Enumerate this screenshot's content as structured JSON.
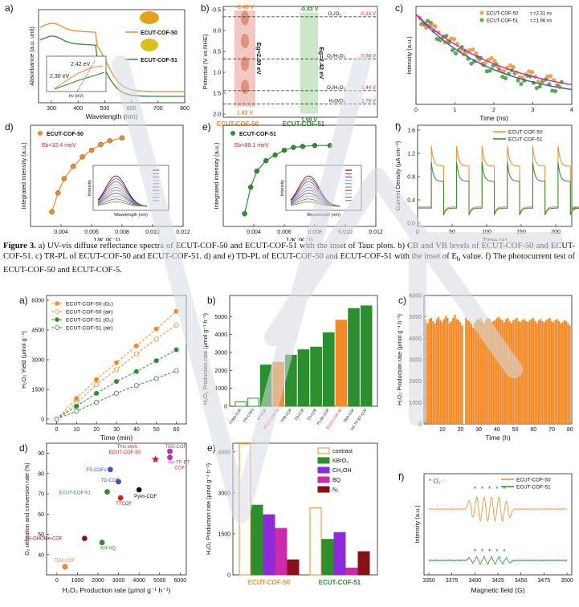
{
  "colors": {
    "orange": "#f28a28",
    "green": "#2b8f2e",
    "magenta": "#cc2aa8",
    "blue": "#3a55c8",
    "dark_red": "#8b0f18",
    "purple": "#8e2bd6",
    "red": "#e21b1b",
    "light_orange": "#f7a24a"
  },
  "caption": {
    "lead": "Figure 3.",
    "text": " a) UV-vis diffuse reflectance spectra of ECUT-COF-50 and ECUT-COF-51 with the inset of Tauc plots. b) CB and VB levels of ECUT-COF-50 and ECUT-COF-51. c) TR-PL of ECUT-COF-50 and ECUT-COF-51. d) and e) TD-PL of ECUT-COF-50 and ECUT-COF-51 with the inset of E",
    "sub": "b",
    "tail": " value. f)   The photocurrent test of ECUT-COF-50 and ECUT-COF-5."
  },
  "panel_letters": {
    "a": "a)",
    "b": "b)",
    "c": "c)",
    "d": "d)",
    "e": "e)",
    "f": "f)"
  },
  "chart_data": [
    {
      "id": "f3a",
      "type": "line",
      "xlabel": "Wavelength (nm)",
      "ylabel": "Absorbance (a.u. unit)",
      "xlim": [
        250,
        800
      ],
      "x_ticks": [
        "300",
        "400",
        "500",
        "600",
        "700",
        "800"
      ],
      "series": [
        {
          "name": "ECUT-COF-50",
          "color": "orange"
        },
        {
          "name": "ECUT-COF-51",
          "color": "green"
        }
      ],
      "inset": {
        "xlabel": "hν (eV)",
        "annotations": [
          "2.42 eV",
          "2.30 eV"
        ]
      }
    },
    {
      "id": "f3b",
      "type": "diagram",
      "ylabel": "Potential (V vs.NHE)",
      "ylim": [
        -0.5,
        2.0
      ],
      "y_ticks": [
        "-0.5",
        "0.0",
        "0.5",
        "1.0",
        "1.5",
        "2.0"
      ],
      "compounds": [
        {
          "name": "ECUT-COF-50",
          "cb": -0.48,
          "vb": 1.82,
          "cb_label": "-0.48 V",
          "vb_label": "1.82 V",
          "gap_label": "Eg=2.30 eV"
        },
        {
          "name": "ECUT-COF-51",
          "cb": -0.43,
          "vb": 1.99,
          "cb_label": "-0.43 V",
          "vb_label": "1.99 V",
          "gap_label": "Eg=2.42 eV"
        }
      ],
      "redox": [
        {
          "label": "O₂/O₂·⁻",
          "value_label": "-0.33 V",
          "v": -0.33
        },
        {
          "label": "O₂/H₂O₂",
          "value_label": "0.68 V",
          "v": 0.68
        },
        {
          "label": "O₂/H₂O₂",
          "value_label": "1.44 V",
          "v": 1.44
        },
        {
          "label": "H₂O/O₂",
          "value_label": "1.76 V",
          "v": 1.76
        }
      ]
    },
    {
      "id": "f3c",
      "type": "scatter",
      "xlabel": "Time (ns)",
      "ylabel": "Intensity (a.u.)",
      "xlim": [
        0,
        4
      ],
      "x_ticks": [
        "0",
        "1",
        "2",
        "3",
        "4"
      ],
      "series": [
        {
          "name": "ECUT-COF-50",
          "tau": "τ =2.31 ns",
          "color": "light_orange",
          "fit": "magenta"
        },
        {
          "name": "ECUT-COF-51",
          "tau": "τ =1.96 ns",
          "color": "green",
          "fit": "blue"
        }
      ]
    },
    {
      "id": "f3d",
      "type": "scatter",
      "xlabel": "1/K (K⁻¹)",
      "ylabel": "Integrated Intensity (a.u.)",
      "xlim": [
        0.002,
        0.012
      ],
      "x_ticks": [
        "0.004",
        "0.006",
        "0.008",
        "0.010",
        "0.012"
      ],
      "legend": "ECUT-COF-50",
      "annotation": "Eb=32.4 meV",
      "color": "orange",
      "x": [
        0.0034,
        0.0038,
        0.0042,
        0.0048,
        0.0054,
        0.006,
        0.0066,
        0.0072,
        0.008
      ],
      "y": [
        0.12,
        0.32,
        0.47,
        0.6,
        0.7,
        0.77,
        0.83,
        0.87,
        0.9
      ],
      "inset": {
        "xlabel": "Wavelength (nm)",
        "ylabel": "Intensity"
      }
    },
    {
      "id": "f3e",
      "type": "scatter",
      "xlabel": "1/K (K⁻¹)",
      "ylabel": "Integrated intensity (a.u.)",
      "xlim": [
        0.002,
        0.012
      ],
      "x_ticks": [
        "0.004",
        "0.006",
        "0.008",
        "0.010",
        "0.012"
      ],
      "legend": "ECUT-COF-51",
      "annotation": "Eb=89.1 meV",
      "color": "green",
      "x": [
        0.0034,
        0.0038,
        0.0042,
        0.0048,
        0.0054,
        0.006,
        0.0066,
        0.0072,
        0.008,
        0.009
      ],
      "y": [
        0.1,
        0.38,
        0.55,
        0.66,
        0.72,
        0.77,
        0.8,
        0.81,
        0.82,
        0.82
      ],
      "inset": {
        "xlabel": "Wavelength (nm)",
        "ylabel": "Intensity"
      }
    },
    {
      "id": "f3f",
      "type": "line",
      "xlabel": "Time (s)",
      "ylabel": "Current Density (µA cm⁻²)",
      "xlim": [
        0,
        225
      ],
      "ylim": [
        0,
        1.6
      ],
      "x_ticks": [
        "0",
        "50",
        "100",
        "150",
        "200"
      ],
      "y_ticks": [
        "0.0",
        "0.4",
        "0.8",
        "1.2",
        "1.6"
      ],
      "series": [
        {
          "name": "ECUT-COF-50",
          "color": "orange"
        },
        {
          "name": "ECUT-COF-51",
          "color": "green"
        }
      ]
    },
    {
      "id": "f4a",
      "type": "line",
      "xlabel": "Time (min)",
      "ylabel": "H₂O₂ Yield (µmol g⁻¹)",
      "xlim": [
        0,
        60
      ],
      "ylim": [
        0,
        6000
      ],
      "x_ticks": [
        "0",
        "10",
        "20",
        "30",
        "40",
        "50",
        "60"
      ],
      "y_ticks": [
        "0",
        "1500",
        "3000",
        "4500",
        "6000"
      ],
      "x": [
        0,
        10,
        20,
        30,
        40,
        50,
        60
      ],
      "series": [
        {
          "name": "ECUT-COF-50 (O₂)",
          "color": "orange",
          "filled": true,
          "values": [
            0,
            1050,
            2000,
            2850,
            3700,
            4550,
            5450
          ]
        },
        {
          "name": "ECUT-COF-50 (air)",
          "color": "orange",
          "filled": false,
          "values": [
            0,
            800,
            1750,
            2500,
            3300,
            4050,
            4750
          ]
        },
        {
          "name": "ECUT-COF-51 (O₂)",
          "color": "green",
          "filled": true,
          "values": [
            0,
            650,
            1300,
            1900,
            2400,
            2950,
            3500
          ]
        },
        {
          "name": "ECUT-COF-51 (air)",
          "color": "green",
          "filled": false,
          "values": [
            0,
            400,
            850,
            1300,
            1700,
            2050,
            2450
          ]
        }
      ]
    },
    {
      "id": "f4b",
      "type": "bar",
      "ylabel": "H₂O₂ Production rate (µmol g⁻¹ h⁻¹)",
      "ylim": [
        0,
        6000
      ],
      "y_ticks": [
        "0",
        "1000",
        "2000",
        "3000",
        "4000",
        "5000"
      ],
      "categories": [
        "TTBD-COF",
        "FS-COFs",
        "KT-COF",
        "ECUT-COF-51",
        "TPB-COF",
        "TD-COF",
        "TO-COF",
        "Py-Bz-COF",
        "ECUT-COF-50",
        "TBD-COF",
        "HZ-TP-BT-COF"
      ],
      "values": [
        250,
        450,
        2300,
        2450,
        2850,
        3150,
        3300,
        4100,
        4800,
        5450,
        5600
      ],
      "styles": [
        "hollow_green",
        "hollow_green",
        "green",
        "orange",
        "green",
        "green",
        "green",
        "green",
        "orange",
        "green",
        "green"
      ]
    },
    {
      "id": "f4c",
      "type": "bar",
      "xlabel": "Time (h)",
      "ylabel": "H₂O₂ Production rate (µmol g⁻¹ h⁻¹)",
      "xlim": [
        0,
        81
      ],
      "ylim": [
        0,
        6000
      ],
      "x_ticks": [
        "10",
        "20",
        "30",
        "40",
        "50",
        "60",
        "70",
        "80"
      ],
      "y_ticks": [
        "0",
        "1000",
        "2000",
        "3000",
        "4000",
        "5000",
        "6000"
      ],
      "x": [
        1,
        2,
        3,
        4,
        5,
        6,
        7,
        8,
        9,
        10,
        11,
        12,
        13,
        14,
        15,
        16,
        17,
        18,
        19,
        20,
        21,
        22,
        23,
        24,
        25,
        26,
        27,
        28,
        29,
        30,
        31,
        32,
        33,
        34,
        35,
        36,
        37,
        38,
        39,
        40,
        41,
        42,
        43,
        44,
        45,
        46,
        47,
        48,
        49,
        50,
        51,
        52,
        53,
        54,
        55,
        56,
        57,
        58,
        59,
        60,
        61,
        62,
        63,
        64,
        65,
        66,
        67,
        68,
        69,
        70,
        71,
        72,
        73,
        74,
        75,
        76,
        77,
        78,
        79,
        80
      ],
      "values": [
        4850,
        4700,
        4900,
        4950,
        4800,
        4700,
        4900,
        5000,
        4850,
        4750,
        4900,
        5050,
        4950,
        4700,
        4800,
        4950,
        5100,
        4900,
        4850,
        4750,
        4600,
        4900,
        4950,
        4850,
        4800,
        4700,
        4500,
        4750,
        4900,
        4850,
        4950,
        4800,
        4700,
        4850,
        4950,
        4900,
        4750,
        4800,
        4850,
        4950,
        5000,
        4900,
        4850,
        4750,
        4900,
        4950,
        4800,
        4700,
        4850,
        4900,
        4950,
        4800,
        4750,
        4850,
        4900,
        4800,
        4750,
        4850,
        4900,
        4950,
        4800,
        4700,
        4850,
        4900,
        4800,
        4750,
        4850,
        4900,
        4950,
        4800,
        4750,
        4850,
        4900,
        4800,
        4700,
        4750,
        4850,
        4800,
        4700,
        4600
      ],
      "color": "orange"
    },
    {
      "id": "f4d",
      "type": "scatter",
      "xlabel": "H₂O₂ Production rate (µmol g⁻¹ h⁻¹)",
      "ylabel": "O₂ utilization and conversion rate (%)",
      "xlim": [
        -500,
        6300
      ],
      "ylim": [
        30,
        95
      ],
      "x_ticks": [
        "0",
        "1000",
        "2000",
        "3000",
        "4000",
        "5000",
        "6000"
      ],
      "y_ticks": [
        "40",
        "50",
        "60",
        "70",
        "80",
        "90"
      ],
      "points": [
        {
          "name": "This work ECUT-COF-50",
          "x": 4800,
          "y": 87,
          "color": "red",
          "marker": "star"
        },
        {
          "name": "TBD-COF",
          "x": 5500,
          "y": 91,
          "color": "magenta",
          "marker": "circle"
        },
        {
          "name": "Hz-TP-BT COF",
          "x": 5500,
          "y": 88,
          "color": "magenta",
          "marker": "circle"
        },
        {
          "name": "FS-COFs",
          "x": 2600,
          "y": 82,
          "color": "blue",
          "marker": "circle"
        },
        {
          "name": "TD-COF",
          "x": 3000,
          "y": 76,
          "color": "blue",
          "marker": "circle"
        },
        {
          "name": "ECUT-COF-51",
          "x": 2450,
          "y": 71,
          "color": "green",
          "marker": "circle"
        },
        {
          "name": "TTCOF",
          "x": 3100,
          "y": 68,
          "color": "red",
          "marker": "circle"
        },
        {
          "name": "Pyim-COF",
          "x": 4000,
          "y": 72,
          "color": "black",
          "marker": "circle"
        },
        {
          "name": "FS-OHOMe-COF",
          "x": 1350,
          "y": 48,
          "color": "dark_red",
          "marker": "circle"
        },
        {
          "name": "KH-AQ",
          "x": 2200,
          "y": 46,
          "color": "green",
          "marker": "circle"
        },
        {
          "name": "TDB-COF",
          "x": 400,
          "y": 34,
          "color": "orange",
          "marker": "circle"
        }
      ]
    },
    {
      "id": "f4e",
      "type": "bar",
      "ylabel": "H₂O₂ Production rate (µmol g⁻¹ h⁻¹)",
      "ylim": [
        0,
        4700
      ],
      "y_ticks": [
        "0",
        "1500",
        "3000",
        "4500"
      ],
      "categories": [
        "ECUT-COF-50",
        "ECUT-COF-51"
      ],
      "series": [
        {
          "name": "contrast",
          "color": "orange",
          "hollow": true,
          "values": [
            4800,
            2450
          ]
        },
        {
          "name": "KBrO₃",
          "color": "green",
          "values": [
            2550,
            1300
          ]
        },
        {
          "name": "CH₃OH",
          "color": "purple",
          "values": [
            2200,
            1550
          ]
        },
        {
          "name": "BQ",
          "color": "magenta",
          "values": [
            1700,
            250
          ]
        },
        {
          "name": "N₂",
          "color": "dark_red",
          "values": [
            550,
            850
          ]
        }
      ]
    },
    {
      "id": "f4f",
      "type": "line",
      "xlabel": "Magnetic field (G)",
      "ylabel": "Intensity (a.u.)",
      "xlim": [
        3350,
        3500
      ],
      "x_ticks": [
        "3350",
        "3375",
        "3400",
        "3425",
        "3450",
        "3475",
        "3500"
      ],
      "annotation": "* O₂·⁻",
      "series": [
        {
          "name": "ECUT-COF-50",
          "color": "orange"
        },
        {
          "name": "ECUT-COF-51",
          "color": "green"
        }
      ]
    }
  ]
}
